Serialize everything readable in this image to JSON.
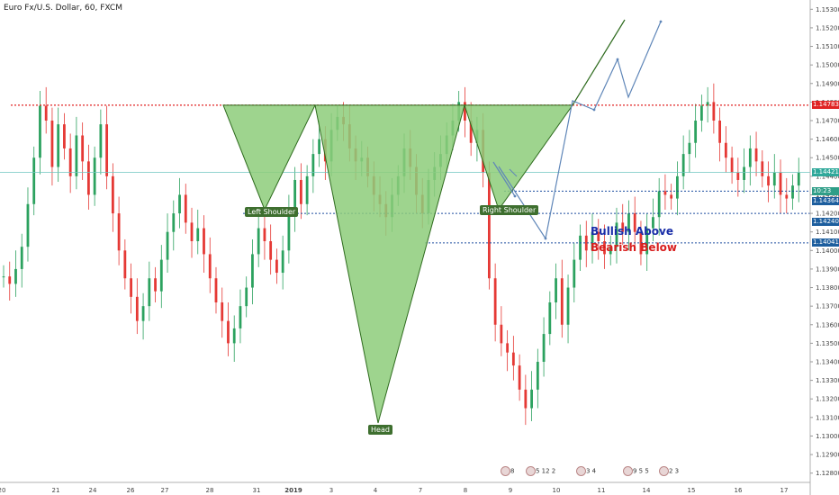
{
  "title": "Euro Fx/U.S. Dollar, 60, FXCM",
  "annotations": {
    "bullish": "Bullish Above",
    "bearish": "Bearish Below",
    "left_shoulder": "Left Shoulder",
    "head": "Head",
    "right_shoulder": "Right Shoulder"
  },
  "price_tags": [
    {
      "label": "1.14783",
      "value": 1.14783,
      "color": "#e02424"
    },
    {
      "label": "1.14421",
      "value": 1.14421,
      "color": "#2fa89a"
    },
    {
      "label": "10:23",
      "value": 1.1432,
      "color": "#2f9e88"
    },
    {
      "label": "1.14364",
      "value": 1.14264,
      "color": "#1d5e9e"
    },
    {
      "label": "1.14240",
      "value": 1.14155,
      "color": "#1d5e9e"
    },
    {
      "label": "1.14041",
      "value": 1.14041,
      "color": "#1d5e9e"
    }
  ],
  "events": [
    {
      "label": "8"
    },
    {
      "label": "5 12 2"
    },
    {
      "label": "3 4"
    },
    {
      "label": "9 5 5"
    },
    {
      "label": "2 3"
    }
  ],
  "chart_data": {
    "type": "line",
    "yaxis": {
      "range": [
        1.1275,
        1.1535
      ],
      "ticks": [
        "1.15300",
        "1.15200",
        "1.15100",
        "1.15000",
        "1.14900",
        "1.14800",
        "1.14700",
        "1.14600",
        "1.14500",
        "1.14400",
        "1.14300",
        "1.14200",
        "1.14100",
        "1.14000",
        "1.13900",
        "1.13800",
        "1.13700",
        "1.13600",
        "1.13500",
        "1.13400",
        "1.13300",
        "1.13200",
        "1.13100",
        "1.13000",
        "1.12900",
        "1.12800"
      ]
    },
    "xaxis": {
      "ticks": [
        "20",
        "21",
        "24",
        "26",
        "27",
        "28",
        "31",
        "2019",
        "3",
        "4",
        "7",
        "8",
        "9",
        "10",
        "11",
        "14",
        "15",
        "16",
        "17"
      ]
    },
    "colors": {
      "up": "#2ca25f",
      "down": "#e53935",
      "pattern_fill": "#8dcc7a",
      "pattern_stroke": "#2e6b1e"
    },
    "price_series": [
      1.1386,
      1.1382,
      1.139,
      1.1402,
      1.1425,
      1.145,
      1.1478,
      1.147,
      1.1445,
      1.1468,
      1.1455,
      1.144,
      1.1462,
      1.1448,
      1.143,
      1.145,
      1.1468,
      1.144,
      1.142,
      1.14,
      1.1385,
      1.1375,
      1.1362,
      1.137,
      1.1385,
      1.1378,
      1.1395,
      1.141,
      1.142,
      1.143,
      1.1415,
      1.1405,
      1.1412,
      1.1398,
      1.1385,
      1.1372,
      1.1362,
      1.135,
      1.1358,
      1.137,
      1.138,
      1.1398,
      1.1412,
      1.1405,
      1.1395,
      1.1388,
      1.14,
      1.142,
      1.1438,
      1.1425,
      1.144,
      1.1452,
      1.146,
      1.1448,
      1.1465,
      1.1472,
      1.1468,
      1.1455,
      1.1448,
      1.145,
      1.144,
      1.143,
      1.1425,
      1.1418,
      1.143,
      1.144,
      1.1455,
      1.1445,
      1.143,
      1.142,
      1.1438,
      1.1445,
      1.1452,
      1.1462,
      1.147,
      1.148,
      1.147,
      1.1458,
      1.1465,
      1.1442,
      1.1385,
      1.136,
      1.135,
      1.1345,
      1.1338,
      1.1325,
      1.1315,
      1.1325,
      1.134,
      1.1355,
      1.1372,
      1.1385,
      1.136,
      1.138,
      1.1395,
      1.1408,
      1.14,
      1.141,
      1.1405,
      1.1398,
      1.1402,
      1.1415,
      1.141,
      1.142,
      1.141,
      1.1398,
      1.1412,
      1.1418,
      1.1432,
      1.143,
      1.1428,
      1.144,
      1.1452,
      1.1458,
      1.147,
      1.1478,
      1.148,
      1.147,
      1.1458,
      1.145,
      1.1442,
      1.1438,
      1.1445,
      1.1455,
      1.1448,
      1.144,
      1.1435,
      1.1442,
      1.143,
      1.1428,
      1.1435,
      1.1442
    ],
    "levels": {
      "neckline_red": 1.14783,
      "current_price": 1.14421,
      "blue_1": 1.1432,
      "blue_2": 1.142,
      "bull_bear": 1.14041
    },
    "pattern": {
      "left_shoulder": {
        "low": 1.1422
      },
      "head": {
        "low": 1.1307
      },
      "right_shoulder": {
        "low": 1.1422
      },
      "neckline": 1.14783
    }
  }
}
